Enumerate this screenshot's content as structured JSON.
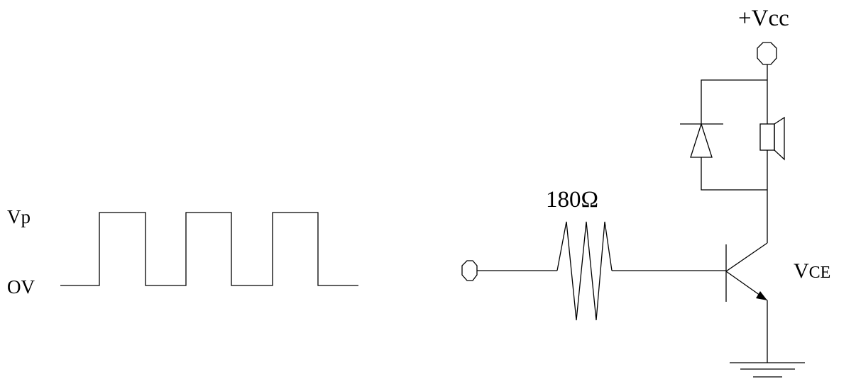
{
  "waveform": {
    "high_label": "Vp",
    "low_label": "OV",
    "pulse_count": 3
  },
  "circuit": {
    "supply_label": "+Vcc",
    "resistor_label": "180Ω",
    "transistor_label_main": "V",
    "transistor_label_sub": "CE",
    "icons": [
      "input-terminal-icon",
      "vcc-terminal-icon",
      "diode-icon",
      "speaker-icon",
      "npn-transistor-icon",
      "resistor-icon",
      "ground-icon"
    ]
  }
}
